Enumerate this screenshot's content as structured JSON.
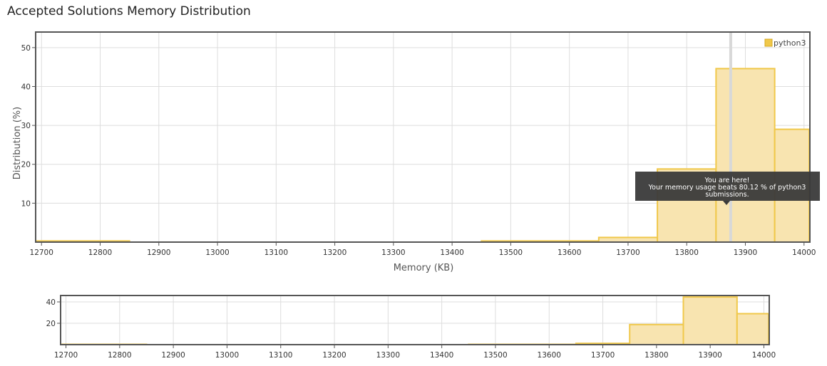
{
  "page": {
    "title": "Accepted Solutions Memory Distribution"
  },
  "tooltip": {
    "line1": "You are here!",
    "line2": "Your memory usage beats 80.12 % of python3",
    "line3": "submissions."
  },
  "chart_data": {
    "type": "bar",
    "title": "Accepted Solutions Memory Distribution",
    "xlabel": "Memory (KB)",
    "ylabel": "Distribution (%)",
    "xlim": [
      12690,
      14010
    ],
    "ylim": [
      0,
      54
    ],
    "xticks": [
      12700,
      12800,
      12900,
      13000,
      13100,
      13200,
      13300,
      13400,
      13500,
      13600,
      13700,
      13800,
      13900,
      14000
    ],
    "yticks": [
      10,
      20,
      30,
      40,
      50
    ],
    "grid": true,
    "legend_position": "top-right",
    "series": [
      {
        "name": "python3",
        "color": "#f0c84a",
        "fill": "#f8e4b0",
        "bins": [
          {
            "x0": 12650,
            "x1": 12850,
            "value": 0.3
          },
          {
            "x0": 12850,
            "x1": 13450,
            "value": 0.0
          },
          {
            "x0": 13450,
            "x1": 13650,
            "value": 0.3
          },
          {
            "x0": 13650,
            "x1": 13750,
            "value": 1.2
          },
          {
            "x0": 13750,
            "x1": 13850,
            "value": 18.8
          },
          {
            "x0": 13850,
            "x1": 13950,
            "value": 44.6
          },
          {
            "x0": 13950,
            "x1": 14050,
            "value": 29.0
          }
        ]
      }
    ],
    "marker_x": 13875,
    "overview": {
      "yticks": [
        20,
        40
      ],
      "ylim": [
        0,
        46
      ]
    }
  }
}
